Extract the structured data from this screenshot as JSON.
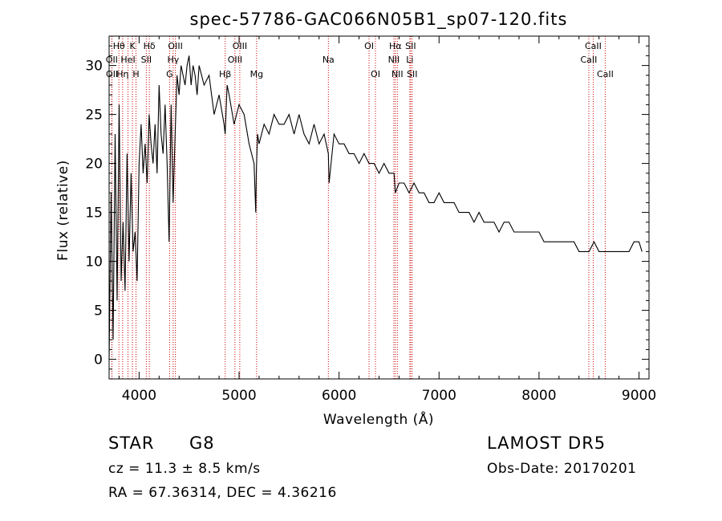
{
  "chart_data": {
    "type": "line",
    "title": "spec-57786-GAC066N05B1_sp07-120.fits",
    "xlabel": "Wavelength (Å)",
    "ylabel": "Flux (relative)",
    "xlim": [
      3700,
      9100
    ],
    "ylim": [
      -2,
      33
    ],
    "xticks": [
      4000,
      5000,
      6000,
      7000,
      8000,
      9000
    ],
    "yticks": [
      0,
      5,
      10,
      15,
      20,
      25,
      30
    ],
    "grid": false,
    "line_color": "#000000",
    "marker_color": "#cc0000",
    "series": [
      {
        "x": [
          3700,
          3720,
          3740,
          3760,
          3780,
          3800,
          3820,
          3840,
          3860,
          3880,
          3900,
          3920,
          3940,
          3960,
          3980,
          4000,
          4020,
          4040,
          4060,
          4080,
          4100,
          4120,
          4140,
          4160,
          4180,
          4200,
          4220,
          4240,
          4260,
          4280,
          4300,
          4320,
          4340,
          4360,
          4380,
          4400,
          4420,
          4440,
          4460,
          4480,
          4500,
          4520,
          4540,
          4560,
          4580,
          4600,
          4650,
          4700,
          4750,
          4800,
          4850,
          4861,
          4880,
          4900,
          4950,
          5000,
          5050,
          5100,
          5150,
          5167,
          5172,
          5184,
          5200,
          5250,
          5300,
          5350,
          5400,
          5450,
          5500,
          5550,
          5600,
          5650,
          5700,
          5750,
          5800,
          5850,
          5893,
          5900,
          5950,
          6000,
          6050,
          6100,
          6150,
          6200,
          6250,
          6300,
          6350,
          6400,
          6450,
          6500,
          6550,
          6563,
          6600,
          6650,
          6700,
          6750,
          6800,
          6850,
          6900,
          6950,
          7000,
          7050,
          7100,
          7150,
          7200,
          7250,
          7300,
          7350,
          7400,
          7450,
          7500,
          7550,
          7600,
          7650,
          7700,
          7750,
          7800,
          7850,
          7900,
          7950,
          8000,
          8050,
          8100,
          8150,
          8200,
          8250,
          8300,
          8350,
          8400,
          8450,
          8500,
          8550,
          8600,
          8650,
          8700,
          8750,
          8800,
          8850,
          8900,
          8950,
          9000,
          9030
        ],
        "y": [
          0,
          17,
          2,
          23,
          6,
          26,
          8,
          14,
          7,
          21,
          10,
          19,
          11,
          13,
          8,
          20,
          24,
          19,
          22,
          18,
          25,
          22,
          20,
          24,
          19,
          28,
          23,
          21,
          26,
          20,
          12,
          26,
          16,
          23,
          29,
          27,
          30,
          29,
          28,
          30,
          31,
          28,
          30,
          29,
          27,
          30,
          28,
          29,
          25,
          27,
          24,
          23,
          28,
          27,
          24,
          26,
          25,
          22,
          20,
          15,
          19,
          23,
          22,
          24,
          23,
          25,
          24,
          24,
          25,
          23,
          25,
          23,
          22,
          24,
          22,
          23,
          21,
          18,
          23,
          22,
          22,
          21,
          21,
          20,
          21,
          20,
          20,
          19,
          20,
          19,
          19,
          17,
          18,
          18,
          17,
          18,
          17,
          17,
          16,
          16,
          17,
          16,
          16,
          16,
          15,
          15,
          15,
          14,
          15,
          14,
          14,
          14,
          13,
          14,
          14,
          13,
          13,
          13,
          13,
          13,
          13,
          12,
          12,
          12,
          12,
          12,
          12,
          12,
          11,
          11,
          11,
          12,
          11,
          11,
          11,
          11,
          11,
          11,
          11,
          12,
          12,
          11
        ]
      }
    ],
    "lines": [
      {
        "label": "Hθ",
        "x": 3798,
        "row": 0
      },
      {
        "label": "OII",
        "x": 3727,
        "row": 1
      },
      {
        "label": "OII",
        "x": 3729,
        "row": 2
      },
      {
        "label": "Hη",
        "x": 3835,
        "row": 2
      },
      {
        "label": "HeI",
        "x": 3889,
        "row": 1
      },
      {
        "label": "K",
        "x": 3934,
        "row": 0
      },
      {
        "label": "H",
        "x": 3969,
        "row": 2
      },
      {
        "label": "Hδ",
        "x": 4102,
        "row": 0
      },
      {
        "label": "SII",
        "x": 4072,
        "row": 1
      },
      {
        "label": "G",
        "x": 4305,
        "row": 2
      },
      {
        "label": "OIII",
        "x": 4363,
        "row": 0
      },
      {
        "label": "Hγ",
        "x": 4341,
        "row": 1
      },
      {
        "label": "Hβ",
        "x": 4861,
        "row": 2
      },
      {
        "label": "OIII",
        "x": 4959,
        "row": 1
      },
      {
        "label": "OIII",
        "x": 5007,
        "row": 0
      },
      {
        "label": "Mg",
        "x": 5175,
        "row": 2
      },
      {
        "label": "Na",
        "x": 5893,
        "row": 1
      },
      {
        "label": "OI",
        "x": 6300,
        "row": 0
      },
      {
        "label": "OI",
        "x": 6364,
        "row": 2
      },
      {
        "label": "NII",
        "x": 6548,
        "row": 1
      },
      {
        "label": "Hα",
        "x": 6563,
        "row": 0
      },
      {
        "label": "NII",
        "x": 6583,
        "row": 2
      },
      {
        "label": "Li",
        "x": 6708,
        "row": 1
      },
      {
        "label": "SII",
        "x": 6716,
        "row": 0
      },
      {
        "label": "SII",
        "x": 6731,
        "row": 2
      },
      {
        "label": "CaII",
        "x": 8498,
        "row": 1
      },
      {
        "label": "CaII",
        "x": 8542,
        "row": 0
      },
      {
        "label": "CaII",
        "x": 8662,
        "row": 2
      }
    ]
  },
  "info": {
    "class": "STAR",
    "subclass": "G8",
    "survey": "LAMOST DR5",
    "velocity": "cz = 11.3 ± 8.5 km/s",
    "obs_date": "Obs-Date: 20170201",
    "coords": "RA =  67.36314, DEC =   4.36216"
  }
}
